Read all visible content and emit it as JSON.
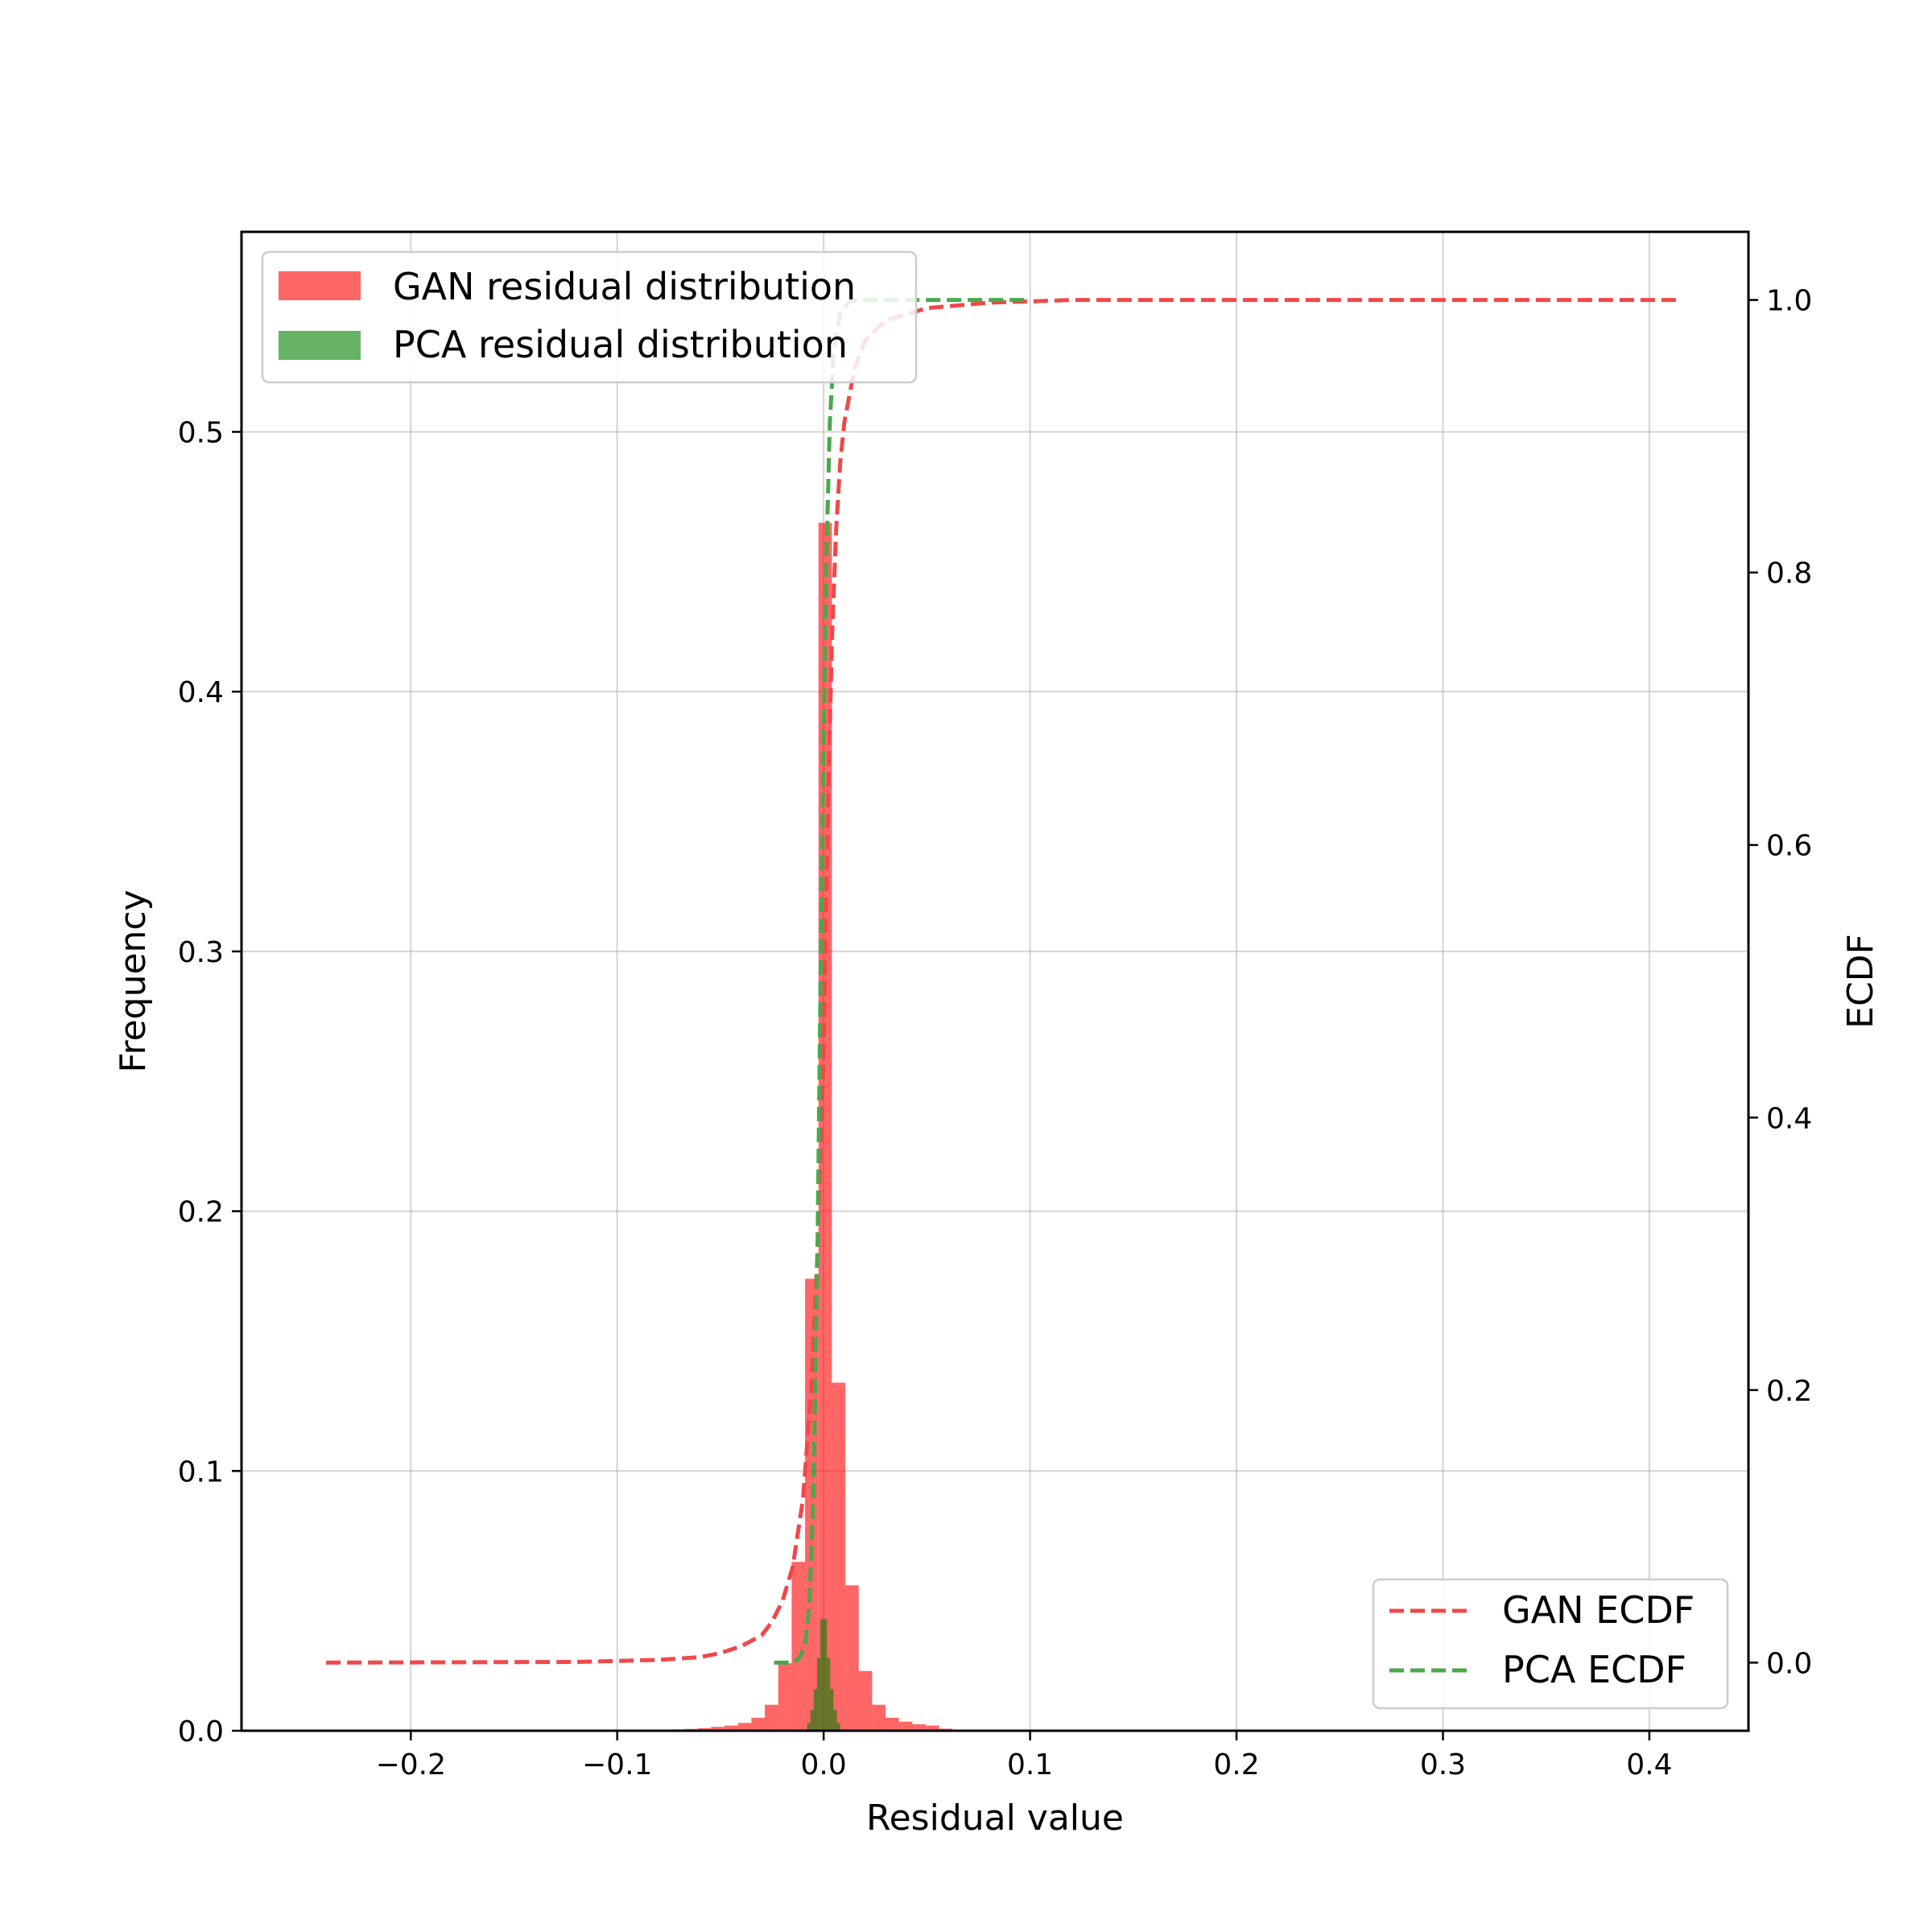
{
  "chart_data": {
    "type": "histogram-with-ecdf",
    "xlabel": "Residual value",
    "ylabel": "Frequency",
    "y2label": "ECDF",
    "xlim": [
      -0.282,
      0.448
    ],
    "ylim": [
      0,
      0.577
    ],
    "y2lim": [
      -0.05,
      1.05
    ],
    "xticks": [
      -0.2,
      -0.1,
      0.0,
      0.1,
      0.2,
      0.3,
      0.4
    ],
    "xtick_labels": [
      "−0.2",
      "−0.1",
      "0.0",
      "0.1",
      "0.2",
      "0.3",
      "0.4"
    ],
    "yticks": [
      0.0,
      0.1,
      0.2,
      0.3,
      0.4,
      0.5
    ],
    "ytick_labels": [
      "0.0",
      "0.1",
      "0.2",
      "0.3",
      "0.4",
      "0.5"
    ],
    "y2ticks": [
      0.0,
      0.2,
      0.4,
      0.6,
      0.8,
      1.0
    ],
    "y2tick_labels": [
      "0.0",
      "0.2",
      "0.4",
      "0.6",
      "0.8",
      "1.0"
    ],
    "grid": true,
    "histograms": [
      {
        "name": "GAN residual distribution",
        "color": "#ff0000",
        "alpha": 0.6,
        "bin_width": 0.0065,
        "bins": [
          {
            "x0": -0.0805,
            "value": 0.0003
          },
          {
            "x0": -0.074,
            "value": 0.0005
          },
          {
            "x0": -0.0675,
            "value": 0.0007
          },
          {
            "x0": -0.061,
            "value": 0.001
          },
          {
            "x0": -0.0545,
            "value": 0.0015
          },
          {
            "x0": -0.048,
            "value": 0.002
          },
          {
            "x0": -0.0415,
            "value": 0.003
          },
          {
            "x0": -0.035,
            "value": 0.005
          },
          {
            "x0": -0.0285,
            "value": 0.01
          },
          {
            "x0": -0.022,
            "value": 0.026
          },
          {
            "x0": -0.0155,
            "value": 0.065
          },
          {
            "x0": -0.009,
            "value": 0.174
          },
          {
            "x0": -0.0025,
            "value": 0.465
          },
          {
            "x0": 0.004,
            "value": 0.134
          },
          {
            "x0": 0.0105,
            "value": 0.056
          },
          {
            "x0": 0.017,
            "value": 0.023
          },
          {
            "x0": 0.0235,
            "value": 0.01
          },
          {
            "x0": 0.03,
            "value": 0.005
          },
          {
            "x0": 0.0365,
            "value": 0.0035
          },
          {
            "x0": 0.043,
            "value": 0.0025
          },
          {
            "x0": 0.0495,
            "value": 0.002
          },
          {
            "x0": 0.056,
            "value": 0.0008
          },
          {
            "x0": 0.0625,
            "value": 0.0004
          },
          {
            "x0": 0.069,
            "value": 0.0002
          }
        ]
      },
      {
        "name": "PCA residual distribution",
        "color": "#008000",
        "alpha": 0.6,
        "bin_width": 0.0016,
        "bins": [
          {
            "x0": -0.008,
            "value": 0.003
          },
          {
            "x0": -0.0064,
            "value": 0.008
          },
          {
            "x0": -0.0048,
            "value": 0.016
          },
          {
            "x0": -0.0032,
            "value": 0.028
          },
          {
            "x0": -0.0016,
            "value": 0.043
          },
          {
            "x0": 0.0,
            "value": 0.043
          },
          {
            "x0": 0.0016,
            "value": 0.028
          },
          {
            "x0": 0.0032,
            "value": 0.016
          },
          {
            "x0": 0.0048,
            "value": 0.008
          },
          {
            "x0": 0.0064,
            "value": 0.003
          }
        ]
      }
    ],
    "ecdf_series": [
      {
        "name": "GAN ECDF",
        "color": "#f0484a",
        "style": "dashed",
        "points": [
          [
            -0.241,
            0.0
          ],
          [
            -0.12,
            0.0005
          ],
          [
            -0.08,
            0.002
          ],
          [
            -0.06,
            0.004
          ],
          [
            -0.05,
            0.007
          ],
          [
            -0.04,
            0.012
          ],
          [
            -0.03,
            0.02
          ],
          [
            -0.025,
            0.03
          ],
          [
            -0.02,
            0.045
          ],
          [
            -0.015,
            0.07
          ],
          [
            -0.01,
            0.12
          ],
          [
            -0.006,
            0.2
          ],
          [
            -0.003,
            0.3
          ],
          [
            0.0,
            0.45
          ],
          [
            0.002,
            0.62
          ],
          [
            0.004,
            0.75
          ],
          [
            0.006,
            0.83
          ],
          [
            0.008,
            0.88
          ],
          [
            0.01,
            0.91
          ],
          [
            0.015,
            0.95
          ],
          [
            0.02,
            0.97
          ],
          [
            0.03,
            0.985
          ],
          [
            0.05,
            0.994
          ],
          [
            0.08,
            0.998
          ],
          [
            0.12,
            1.0
          ],
          [
            0.413,
            1.0
          ]
        ]
      },
      {
        "name": "PCA ECDF",
        "color": "#4aa84a",
        "style": "dashed",
        "points": [
          [
            -0.024,
            0.0
          ],
          [
            -0.015,
            0.0
          ],
          [
            -0.012,
            0.003
          ],
          [
            -0.009,
            0.012
          ],
          [
            -0.007,
            0.04
          ],
          [
            -0.005,
            0.12
          ],
          [
            -0.003,
            0.3
          ],
          [
            -0.0015,
            0.5
          ],
          [
            0.0,
            0.68
          ],
          [
            0.0015,
            0.82
          ],
          [
            0.003,
            0.91
          ],
          [
            0.005,
            0.965
          ],
          [
            0.008,
            0.99
          ],
          [
            0.012,
            0.998
          ],
          [
            0.016,
            1.0
          ],
          [
            0.1,
            1.0
          ]
        ]
      }
    ],
    "legends": [
      {
        "location": "upper left",
        "entries": [
          "GAN residual distribution",
          "PCA residual distribution"
        ]
      },
      {
        "location": "lower right",
        "entries": [
          "GAN ECDF",
          "PCA ECDF"
        ]
      }
    ]
  },
  "legend_hist": {
    "gan_label": "GAN residual distribution",
    "pca_label": "PCA residual distribution"
  },
  "legend_ecdf": {
    "gan_label": "GAN ECDF",
    "pca_label": "PCA ECDF"
  }
}
